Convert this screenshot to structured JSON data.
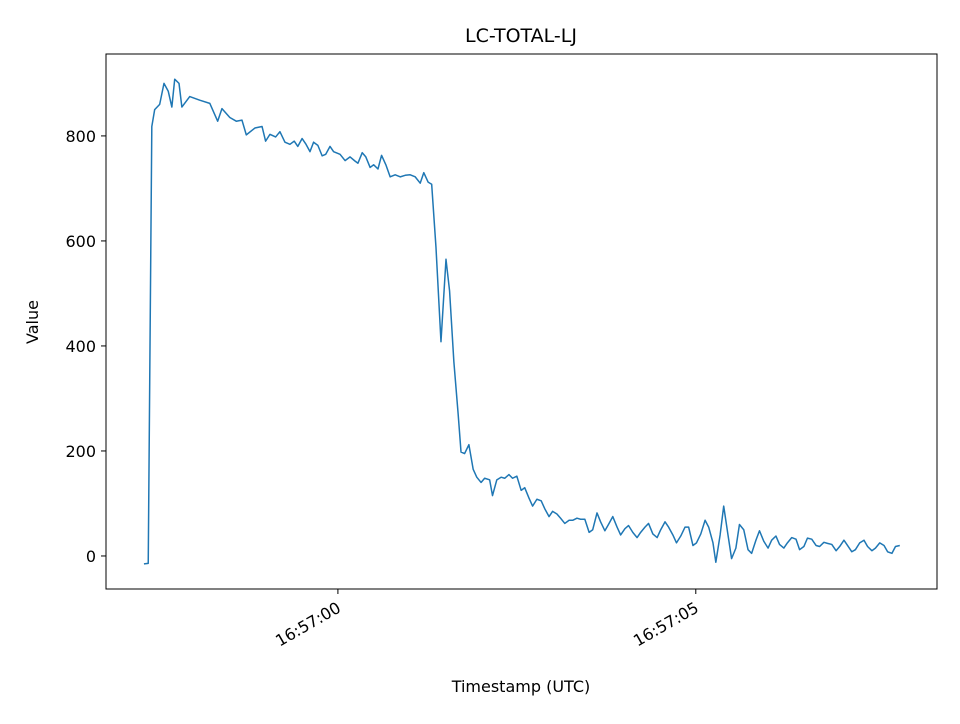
{
  "chart_data": {
    "type": "line",
    "title": "LC-TOTAL-LJ",
    "xlabel": "Timestamp (UTC)",
    "ylabel": "Value",
    "x": [
      -2.71,
      -2.65,
      -2.6,
      -2.56,
      -2.49,
      -2.43,
      -2.37,
      -2.32,
      -2.28,
      -2.22,
      -2.18,
      -2.07,
      -1.93,
      -1.79,
      -1.68,
      -1.62,
      -1.51,
      -1.42,
      -1.34,
      -1.28,
      -1.16,
      -1.06,
      -1.01,
      -0.95,
      -0.87,
      -0.81,
      -0.74,
      -0.67,
      -0.61,
      -0.56,
      -0.5,
      -0.45,
      -0.39,
      -0.34,
      -0.28,
      -0.22,
      -0.17,
      -0.11,
      -0.06,
      0.03,
      0.1,
      0.17,
      0.24,
      0.28,
      0.34,
      0.39,
      0.45,
      0.5,
      0.56,
      0.61,
      0.67,
      0.73,
      0.8,
      0.87,
      0.94,
      1.01,
      1.08,
      1.15,
      1.2,
      1.26,
      1.31,
      1.37,
      1.44,
      1.51,
      1.56,
      1.62,
      1.68,
      1.72,
      1.77,
      1.83,
      1.89,
      1.94,
      2.0,
      2.05,
      2.12,
      2.16,
      2.22,
      2.28,
      2.33,
      2.39,
      2.44,
      2.5,
      2.56,
      2.61,
      2.67,
      2.72,
      2.78,
      2.84,
      2.89,
      2.95,
      3.0,
      3.06,
      3.11,
      3.17,
      3.23,
      3.28,
      3.34,
      3.39,
      3.45,
      3.51,
      3.56,
      3.62,
      3.67,
      3.73,
      3.78,
      3.84,
      3.9,
      3.95,
      4.01,
      4.06,
      4.12,
      4.18,
      4.23,
      4.29,
      4.34,
      4.4,
      4.46,
      4.51,
      4.57,
      4.62,
      4.68,
      4.73,
      4.79,
      4.85,
      4.9,
      4.96,
      5.01,
      5.07,
      5.13,
      5.18,
      5.24,
      5.28,
      5.34,
      5.39,
      5.45,
      5.5,
      5.56,
      5.61,
      5.67,
      5.73,
      5.78,
      5.84,
      5.89,
      5.95,
      6.01,
      6.06,
      6.12,
      6.17,
      6.23,
      6.28,
      6.34,
      6.4,
      6.45,
      6.51,
      6.56,
      6.62,
      6.68,
      6.73,
      6.79,
      6.84,
      6.9,
      6.96,
      7.01,
      7.07,
      7.12,
      7.18,
      7.23,
      7.29,
      7.35,
      7.4,
      7.46,
      7.51,
      7.57,
      7.63,
      7.68,
      7.74,
      7.79,
      7.85
    ],
    "series": [
      {
        "name": "LC-TOTAL-LJ",
        "color": "#1f77b4",
        "values": [
          -15,
          -14,
          818,
          850,
          860,
          900,
          885,
          855,
          908,
          900,
          855,
          875,
          868,
          862,
          828,
          852,
          835,
          828,
          830,
          802,
          815,
          818,
          790,
          803,
          798,
          808,
          788,
          784,
          790,
          780,
          795,
          785,
          770,
          788,
          782,
          762,
          765,
          780,
          770,
          765,
          753,
          760,
          752,
          748,
          768,
          760,
          740,
          745,
          737,
          763,
          745,
          722,
          726,
          722,
          725,
          726,
          722,
          710,
          730,
          712,
          708,
          588,
          408,
          565,
          505,
          370,
          270,
          198,
          195,
          212,
          165,
          150,
          140,
          148,
          145,
          115,
          145,
          150,
          148,
          155,
          148,
          152,
          125,
          130,
          110,
          95,
          108,
          105,
          90,
          75,
          85,
          80,
          72,
          62,
          68,
          68,
          72,
          70,
          70,
          45,
          50,
          82,
          65,
          48,
          60,
          75,
          55,
          40,
          52,
          58,
          45,
          35,
          45,
          55,
          62,
          42,
          35,
          50,
          65,
          55,
          40,
          25,
          38,
          55,
          55,
          20,
          25,
          42,
          68,
          55,
          25,
          -12,
          40,
          95,
          40,
          -5,
          15,
          60,
          50,
          12,
          5,
          30,
          48,
          28,
          15,
          30,
          38,
          22,
          15,
          25,
          35,
          32,
          12,
          18,
          34,
          32,
          20,
          18,
          26,
          24,
          22,
          10,
          18,
          30,
          20,
          8,
          12,
          25,
          30,
          18,
          10,
          15,
          25,
          20,
          8,
          5,
          18,
          20
        ]
      }
    ],
    "xlim": [
      -3.24,
      8.37
    ],
    "ylim": [
      -62.9,
      956
    ],
    "xticks": [
      {
        "value": 0,
        "label": "16:57:00"
      },
      {
        "value": 5,
        "label": "16:57:05"
      }
    ],
    "yticks": [
      0,
      200,
      400,
      600,
      800
    ],
    "grid": false
  }
}
